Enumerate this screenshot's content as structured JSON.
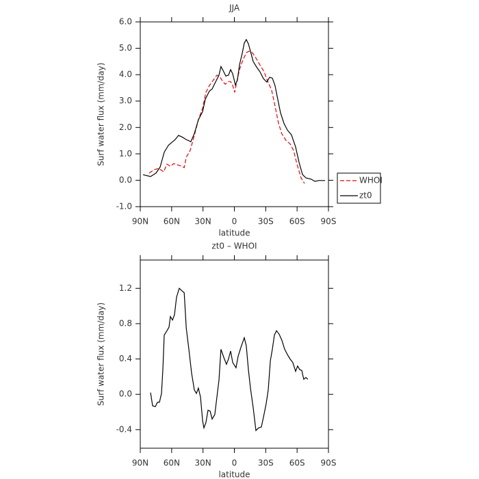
{
  "chart_data": [
    {
      "type": "line",
      "title": "JJA",
      "xlabel": "latitude",
      "ylabel": "Surf water flux (mm/day)",
      "xlim": [
        90,
        -90
      ],
      "xticks": [
        {
          "value": 90,
          "label": "90N"
        },
        {
          "value": 60,
          "label": "60N"
        },
        {
          "value": 30,
          "label": "30N"
        },
        0,
        {
          "value": -30,
          "label": "30S"
        },
        {
          "value": -60,
          "label": "60S"
        },
        {
          "value": -90,
          "label": "90S"
        }
      ],
      "ylim": [
        -1,
        6
      ],
      "yticks": [
        {
          "value": -1,
          "label": "-1.0"
        },
        {
          "value": 0,
          "label": "0.0"
        },
        {
          "value": 1,
          "label": "1.0"
        },
        {
          "value": 2,
          "label": "2.0"
        },
        {
          "value": 3,
          "label": "3.0"
        },
        {
          "value": 4,
          "label": "4.0"
        },
        {
          "value": 5,
          "label": "5.0"
        },
        {
          "value": 6,
          "label": "6.0"
        }
      ],
      "legend": "right",
      "series": [
        {
          "name": "WHOI",
          "color": "#e8000b",
          "dash": true,
          "x": [
            81.5,
            76.9,
            72.3,
            67.7,
            64.5,
            61.2,
            57.9,
            54,
            50,
            48,
            46,
            42.2,
            38.3,
            34.4,
            30.4,
            27.2,
            23.9,
            20,
            16.7,
            14.1,
            11.5,
            8.8,
            5.6,
            3.6,
            1.6,
            -0.3,
            -2.2,
            -4.9,
            -8.1,
            -11.4,
            -14,
            -16.6,
            -19.9,
            -24.5,
            -28.5,
            -31.7,
            -35.7,
            -38.9,
            -42.2,
            -45.5,
            -49.4,
            -53.3,
            -56.6,
            -59.9,
            -63.8,
            -67.1
          ],
          "values": [
            0.27,
            0.4,
            0.45,
            0.32,
            0.61,
            0.53,
            0.63,
            0.58,
            0.53,
            0.48,
            0.87,
            1.13,
            1.7,
            2.29,
            2.73,
            3.33,
            3.59,
            3.8,
            3.98,
            3.93,
            3.77,
            3.64,
            3.74,
            3.74,
            3.59,
            3.33,
            3.72,
            4.19,
            4.55,
            4.83,
            4.89,
            4.86,
            4.68,
            4.37,
            4.11,
            3.77,
            3.41,
            2.81,
            2.16,
            1.75,
            1.51,
            1.38,
            1.13,
            0.61,
            0.09,
            -0.12
          ]
        },
        {
          "name": "zt0",
          "color": "#000000",
          "dash": false,
          "x": [
            87.4,
            80.2,
            75,
            71,
            67,
            63,
            59,
            56.6,
            53.4,
            50,
            46,
            41.6,
            38.3,
            34.4,
            30.4,
            27.8,
            23.9,
            21.3,
            17.4,
            14.7,
            12.8,
            10.8,
            8.2,
            5.6,
            3.6,
            1.6,
            -1,
            -2.9,
            -4.9,
            -7.5,
            -9.5,
            -11.4,
            -13.4,
            -15.4,
            -18,
            -21.3,
            -24.5,
            -27.8,
            -31,
            -33.7,
            -36.3,
            -38.9,
            -41.5,
            -44.2,
            -47.4,
            -50.7,
            -54.6,
            -58.6,
            -61.8,
            -65.1,
            -68.4,
            -73.6,
            -76.9,
            -80.8,
            -86.7
          ],
          "values": [
            0.21,
            0.14,
            0.27,
            0.5,
            1.07,
            1.33,
            1.46,
            1.54,
            1.7,
            1.64,
            1.54,
            1.46,
            1.77,
            2.29,
            2.6,
            3.07,
            3.38,
            3.46,
            3.77,
            3.98,
            4.31,
            4.16,
            3.95,
            3.98,
            4.19,
            4.03,
            3.61,
            3.79,
            4.37,
            4.81,
            5.2,
            5.33,
            5.17,
            4.89,
            4.5,
            4.29,
            4.11,
            3.85,
            3.72,
            3.9,
            3.87,
            3.59,
            3.07,
            2.55,
            2.16,
            1.9,
            1.72,
            1.26,
            0.69,
            0.22,
            0.09,
            0.04,
            -0.04,
            -0.01,
            -0.01
          ]
        }
      ]
    },
    {
      "type": "line",
      "title": "zt0 – WHOI",
      "xlabel": "latitude",
      "ylabel": "Surf water flux (mm/day)",
      "xlim": [
        90,
        -90
      ],
      "xticks": [
        {
          "value": 90,
          "label": "90N"
        },
        {
          "value": 60,
          "label": "60N"
        },
        {
          "value": 30,
          "label": "30N"
        },
        0,
        {
          "value": -30,
          "label": "30S"
        },
        {
          "value": -60,
          "label": "60S"
        },
        {
          "value": -90,
          "label": "90S"
        }
      ],
      "ylim": [
        -0.61,
        1.52
      ],
      "yticks": [
        -0.4,
        {
          "value": 0,
          "label": "0.0"
        },
        0.4,
        0.8,
        1.2
      ],
      "color": "#000000",
      "x": [
        80.2,
        78.2,
        75.6,
        73.6,
        71.7,
        69.7,
        68.4,
        67.1,
        64.5,
        62.5,
        61.2,
        59.2,
        57.3,
        55.3,
        52.7,
        50,
        48,
        46,
        43.5,
        40.9,
        38.3,
        36.3,
        34.4,
        32.4,
        30.4,
        29.1,
        27.2,
        25.2,
        23.2,
        21.3,
        18.7,
        16.7,
        14.7,
        12.8,
        10.2,
        7.6,
        5.6,
        3.6,
        1.6,
        -1.6,
        -3.6,
        -6.2,
        -9.5,
        -11.4,
        -13.4,
        -15.4,
        -18,
        -20.6,
        -23.2,
        -25.8,
        -27.8,
        -30.4,
        -32.4,
        -34.4,
        -36.3,
        -38.3,
        -40.3,
        -42.9,
        -45.5,
        -48.1,
        -50.7,
        -53.3,
        -55.9,
        -58.6,
        -60.5,
        -62.5,
        -64.5,
        -66.4,
        -68.4,
        -70.3
      ],
      "values": [
        0.02,
        -0.13,
        -0.14,
        -0.09,
        -0.09,
        0.01,
        0.28,
        0.67,
        0.72,
        0.76,
        0.88,
        0.84,
        0.9,
        1.1,
        1.2,
        1.17,
        1.15,
        0.75,
        0.51,
        0.24,
        0.05,
        0.01,
        0.07,
        -0.03,
        -0.3,
        -0.38,
        -0.32,
        -0.18,
        -0.19,
        -0.28,
        -0.23,
        -0.03,
        0.16,
        0.51,
        0.42,
        0.34,
        0.4,
        0.49,
        0.36,
        0.3,
        0.43,
        0.53,
        0.64,
        0.55,
        0.28,
        0.07,
        -0.15,
        -0.41,
        -0.38,
        -0.37,
        -0.26,
        -0.11,
        0.05,
        0.38,
        0.51,
        0.67,
        0.72,
        0.68,
        0.61,
        0.51,
        0.45,
        0.4,
        0.36,
        0.26,
        0.32,
        0.28,
        0.27,
        0.17,
        0.19,
        0.17
      ]
    }
  ]
}
